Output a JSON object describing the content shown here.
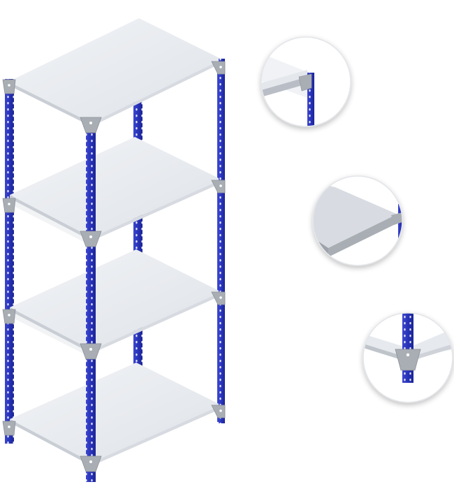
{
  "image": {
    "subject": "shelving-unit",
    "shelf_count": 4,
    "detail_callout_count": 3,
    "colors": {
      "upright": "#2833b8",
      "upright_dark": "#1a2290",
      "upright_light": "#4a55d8",
      "shelf_top": "#eaedf1",
      "shelf_front": "#cfd3d9",
      "shelf_shadow": "#b8bdc5",
      "bracket": "#a9aeb5",
      "bracket_dark": "#8b9097",
      "hole": "#ffffff",
      "circle_border": "#e3e5e9"
    }
  }
}
